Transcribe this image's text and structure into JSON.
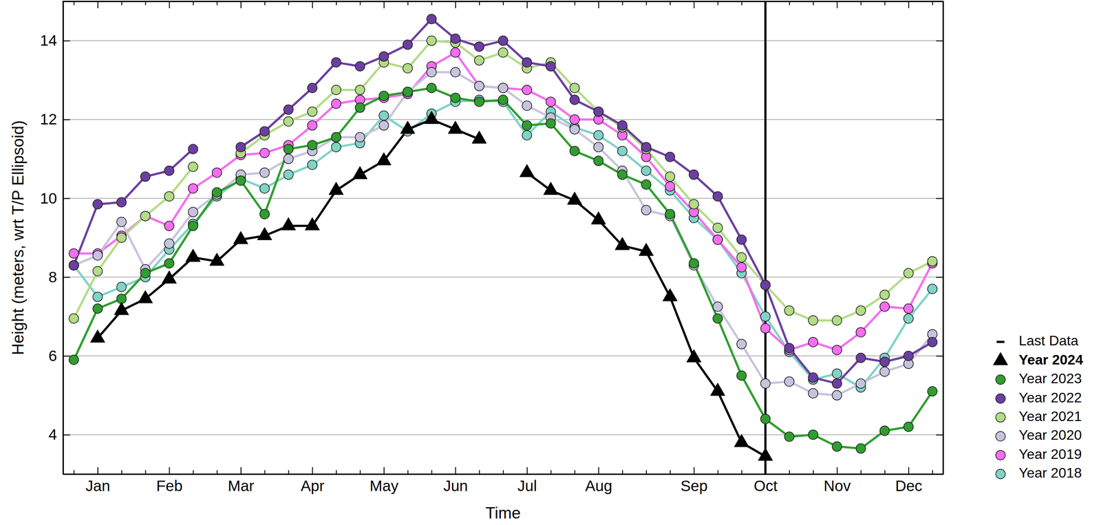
{
  "chart_data": {
    "type": "line",
    "x_label": "Time",
    "y_label": "Height (meters, wrt T/P Ellipsoid)",
    "categories": [
      null,
      "Jan",
      null,
      null,
      "Feb",
      null,
      null,
      "Mar",
      null,
      null,
      "Apr",
      null,
      null,
      "May",
      null,
      null,
      "Jun",
      null,
      null,
      "Jul",
      null,
      null,
      "Aug",
      null,
      null,
      null,
      "Sep",
      null,
      null,
      "Oct",
      null,
      null,
      "Nov",
      null,
      null,
      "Dec",
      null
    ],
    "series": [
      {
        "name": "Year 2024",
        "color": "#000000",
        "marker": "triangle",
        "values": [
          null,
          6.45,
          7.15,
          7.45,
          7.95,
          8.5,
          8.4,
          8.95,
          9.05,
          9.3,
          9.3,
          10.2,
          10.6,
          10.95,
          11.75,
          12.0,
          11.75,
          11.5,
          null,
          10.65,
          10.2,
          9.95,
          9.45,
          8.8,
          8.65,
          7.5,
          5.95,
          5.1,
          3.8,
          3.45,
          null,
          null,
          null,
          null,
          null,
          null,
          null
        ]
      },
      {
        "name": "Year 2023",
        "color": "#2f9e2f",
        "marker": "circle",
        "values": [
          5.9,
          7.2,
          7.45,
          8.1,
          8.35,
          9.3,
          10.15,
          10.45,
          9.6,
          11.25,
          11.35,
          11.55,
          12.3,
          12.6,
          12.7,
          12.8,
          12.55,
          12.45,
          12.5,
          11.85,
          11.9,
          11.2,
          10.95,
          10.6,
          10.35,
          9.6,
          8.35,
          6.95,
          5.5,
          4.4,
          3.95,
          4.0,
          3.7,
          3.65,
          4.1,
          4.2,
          5.1
        ]
      },
      {
        "name": "Year 2022",
        "color": "#6b3fa0",
        "marker": "circle",
        "values": [
          8.3,
          9.85,
          9.9,
          10.55,
          10.7,
          11.25,
          null,
          11.3,
          11.7,
          12.25,
          12.8,
          13.45,
          13.35,
          13.6,
          13.9,
          14.55,
          14.05,
          13.85,
          14.0,
          13.45,
          13.35,
          12.5,
          12.2,
          11.85,
          11.3,
          11.05,
          10.6,
          10.05,
          8.95,
          7.8,
          6.2,
          5.45,
          5.3,
          5.95,
          5.85,
          6.0,
          6.35
        ]
      },
      {
        "name": "Year 2021",
        "color": "#b3dc87",
        "marker": "circle",
        "values": [
          6.95,
          8.15,
          9.0,
          9.55,
          10.05,
          10.8,
          null,
          11.15,
          11.6,
          11.95,
          12.2,
          12.75,
          12.75,
          13.45,
          13.3,
          14.0,
          13.95,
          13.5,
          13.7,
          13.3,
          13.45,
          12.8,
          12.2,
          11.8,
          11.25,
          10.55,
          9.85,
          9.25,
          8.5,
          7.8,
          7.15,
          6.9,
          6.9,
          7.15,
          7.55,
          8.1,
          8.4
        ]
      },
      {
        "name": "Year 2020",
        "color": "#c6c4dd",
        "marker": "circle",
        "values": [
          8.3,
          8.55,
          9.4,
          8.2,
          8.85,
          9.65,
          10.1,
          10.6,
          10.65,
          11.0,
          11.2,
          11.55,
          11.55,
          11.85,
          12.7,
          13.2,
          13.2,
          12.85,
          12.8,
          12.35,
          12.05,
          11.75,
          11.3,
          10.7,
          9.7,
          9.55,
          8.3,
          7.25,
          6.3,
          5.3,
          5.35,
          5.05,
          5.0,
          5.3,
          5.6,
          5.8,
          6.55
        ]
      },
      {
        "name": "Year 2019",
        "color": "#f56df0",
        "marker": "circle",
        "values": [
          8.6,
          8.6,
          9.05,
          9.55,
          9.3,
          10.25,
          10.65,
          11.1,
          11.15,
          11.35,
          11.85,
          12.4,
          12.5,
          12.55,
          12.65,
          13.35,
          13.7,
          12.85,
          12.8,
          12.75,
          12.45,
          12.0,
          12.0,
          11.6,
          11.05,
          10.3,
          9.65,
          8.95,
          8.25,
          6.7,
          6.15,
          6.35,
          6.15,
          6.6,
          7.25,
          7.2,
          8.35
        ]
      },
      {
        "name": "Year 2018",
        "color": "#7fd3c7",
        "marker": "circle",
        "values": [
          8.3,
          7.5,
          7.75,
          8.0,
          8.7,
          9.35,
          10.05,
          10.5,
          10.25,
          10.6,
          10.85,
          11.3,
          11.4,
          12.1,
          11.7,
          12.15,
          12.45,
          12.5,
          12.45,
          11.6,
          12.2,
          11.8,
          11.6,
          11.2,
          10.7,
          10.2,
          9.5,
          8.95,
          8.1,
          7.0,
          6.1,
          5.4,
          5.55,
          5.2,
          5.95,
          6.95,
          7.7
        ]
      }
    ],
    "annotations": [
      {
        "type": "vline",
        "label": "Last Data",
        "x": "Oct",
        "color": "#000000"
      }
    ],
    "ylim": [
      3,
      15
    ],
    "yticks": [
      4,
      6,
      8,
      10,
      12,
      14
    ],
    "grid": true,
    "legend": "right"
  }
}
